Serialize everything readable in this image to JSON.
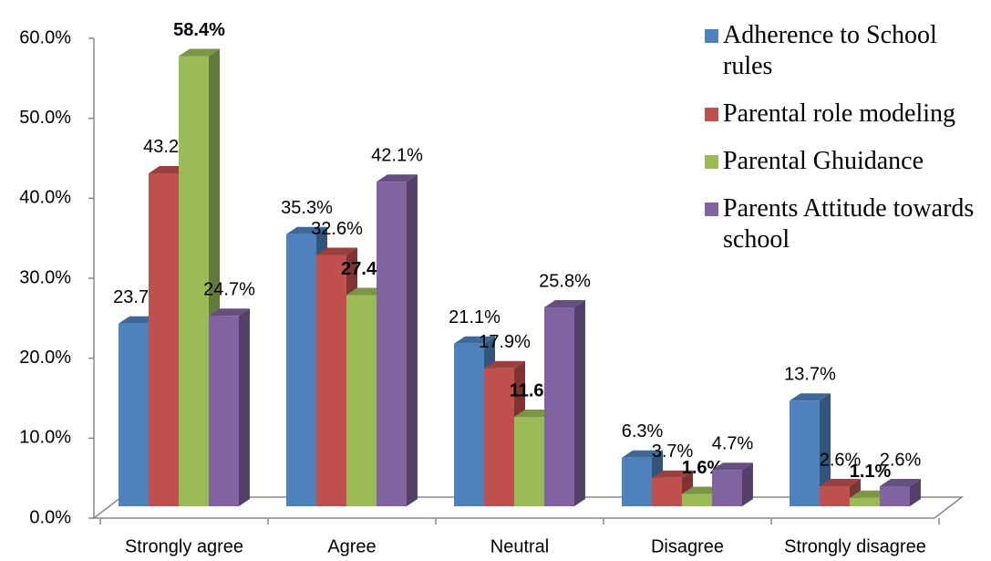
{
  "chart_data": {
    "type": "bar3d",
    "categories": [
      "Strongly agree",
      "Agree",
      "Neutral",
      "Disagree",
      "Strongly disagree"
    ],
    "series": [
      {
        "name": "Adherence to School rules",
        "color": "#4f81bd",
        "values": [
          23.7,
          35.3,
          21.1,
          6.3,
          13.7
        ],
        "value_labels": [
          "23.7%",
          "35.3%",
          "21.1%",
          "6.3%",
          "13.7%"
        ]
      },
      {
        "name": "Parental role modeling",
        "color": "#c0504d",
        "values": [
          43.2,
          32.6,
          17.9,
          3.7,
          2.6
        ],
        "value_labels": [
          "43.2%",
          "32.6%",
          "17.9%",
          "3.7%",
          "2.6%"
        ]
      },
      {
        "name": "Parental Ghuidance",
        "color": "#9bbb59",
        "values": [
          58.4,
          27.4,
          11.6,
          1.6,
          1.1
        ],
        "value_labels": [
          "58.4%",
          "27.4%",
          "11.6%",
          "1.6%",
          "1.1%"
        ],
        "bold_labels": true
      },
      {
        "name": "Parents Attitude towards school",
        "color": "#8064a2",
        "values": [
          24.7,
          42.1,
          25.8,
          4.7,
          2.6
        ],
        "value_labels": [
          "24.7%",
          "42.1%",
          "25.8%",
          "4.7%",
          "2.6%"
        ]
      }
    ],
    "ylim": [
      0,
      60
    ],
    "yticks": [
      {
        "value": 0,
        "label": "0.0%"
      },
      {
        "value": 10,
        "label": "10.0%"
      },
      {
        "value": 20,
        "label": "20.0%"
      },
      {
        "value": 30,
        "label": "30.0%"
      },
      {
        "value": 40,
        "label": "40.0%"
      },
      {
        "value": 50,
        "label": "50.0%"
      },
      {
        "value": 60,
        "label": "60.0%"
      }
    ],
    "legend": "right"
  }
}
